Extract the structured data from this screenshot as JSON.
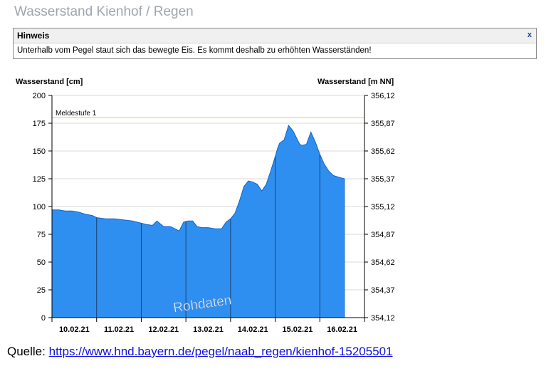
{
  "page": {
    "title": "Wasserstand Kienhof / Regen"
  },
  "notice": {
    "title": "Hinweis",
    "close_label": "x",
    "text": "Unterhalb vom Pegel staut sich das bewegte Eis. Es kommt deshalb zu erhöhten Wasserständen!"
  },
  "source": {
    "label": "Quelle:",
    "link_text": "https://www.hnd.bayern.de/pegel/naab_regen/kienhof-15205501"
  },
  "chart_data": {
    "type": "area",
    "ylabel_left": "Wasserstand [cm]",
    "ylabel_right": "Wasserstand [m NN]",
    "ylim": [
      0,
      200
    ],
    "yticks_left": [
      0,
      25,
      50,
      75,
      100,
      125,
      150,
      175,
      200
    ],
    "yticks_right": [
      "354,12",
      "354,37",
      "354,62",
      "354,87",
      "355,12",
      "355,37",
      "355,62",
      "355,87",
      "356,12"
    ],
    "xtick_labels": [
      "10.02.21",
      "11.02.21",
      "12.02.21",
      "13.02.21",
      "14.02.21",
      "15.02.21",
      "16.02.21"
    ],
    "xlim": [
      0,
      7
    ],
    "threshold": {
      "label": "Meldestufe 1",
      "value": 180,
      "color": "#f0d060"
    },
    "watermark": "Rohdaten",
    "fill_color": "#2f8ff0",
    "grid": true,
    "series": [
      {
        "x": [
          0,
          0.15,
          0.3,
          0.45,
          0.6,
          0.75,
          0.9,
          1.0,
          1.2,
          1.4,
          1.6,
          1.8,
          1.9,
          2.0,
          2.1,
          2.25,
          2.35,
          2.5,
          2.65,
          2.75,
          2.85,
          2.95,
          3.05,
          3.15,
          3.25,
          3.35,
          3.5,
          3.65,
          3.8,
          3.9,
          4.0,
          4.1,
          4.2,
          4.3,
          4.4,
          4.5,
          4.6,
          4.7,
          4.8,
          4.9,
          5.0,
          5.05,
          5.1,
          5.2,
          5.3,
          5.4,
          5.5,
          5.55,
          5.6,
          5.7,
          5.8,
          5.9,
          6.0,
          6.1,
          6.2,
          6.3,
          6.45,
          6.55
        ],
        "y": [
          97,
          97,
          96,
          96,
          95,
          93,
          92,
          90,
          89,
          89,
          88,
          87,
          86,
          85,
          84,
          83,
          87,
          82,
          82,
          80,
          78,
          86,
          87,
          87,
          82,
          81,
          81,
          80,
          80,
          86,
          89,
          94,
          105,
          118,
          123,
          122,
          120,
          114,
          120,
          132,
          145,
          152,
          157,
          160,
          173,
          168,
          160,
          156,
          155,
          156,
          167,
          158,
          147,
          138,
          132,
          128,
          126,
          125
        ]
      }
    ]
  }
}
